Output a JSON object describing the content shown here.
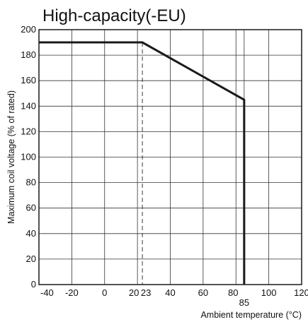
{
  "chart_data": {
    "type": "line",
    "title": "High-capacity(-EU)",
    "xlabel": "Ambient temperature (°C)",
    "ylabel": "Maximum coil voltage (% of rated)",
    "xlim": [
      -40,
      120
    ],
    "ylim": [
      0,
      200
    ],
    "x_tick_labels": [
      "-40",
      "-20",
      "0",
      "20",
      "23",
      "40",
      "60",
      "80",
      "85",
      "100",
      "120"
    ],
    "y_ticks": [
      0,
      20,
      40,
      60,
      80,
      100,
      120,
      140,
      160,
      180,
      200
    ],
    "grid": true,
    "series": [
      {
        "x": [
          -40,
          23,
          85,
          85
        ],
        "y": [
          190,
          190,
          145,
          0
        ],
        "color": "#1a1a1a"
      }
    ],
    "reference_lines": [
      {
        "x": 23,
        "style": "dashed"
      }
    ]
  }
}
